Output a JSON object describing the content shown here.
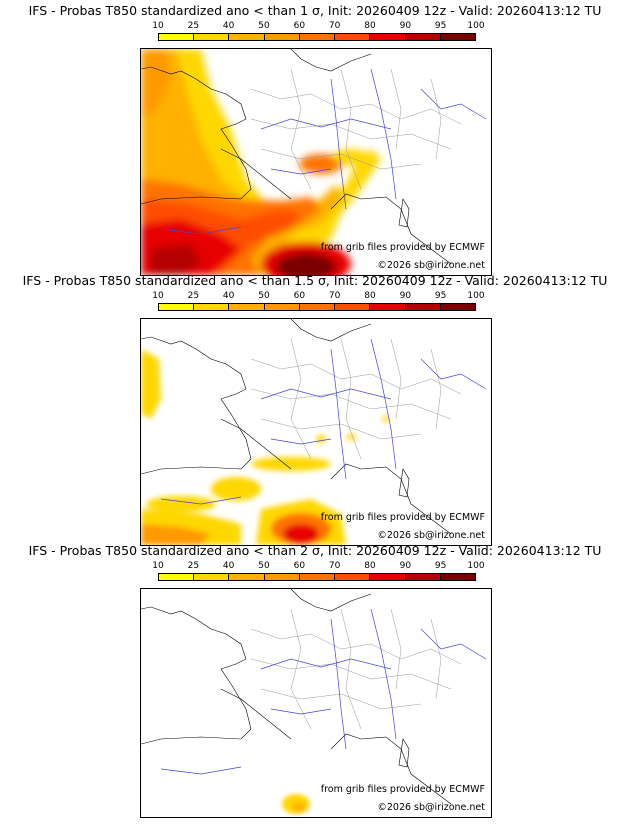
{
  "legend": {
    "ticks": [
      "10",
      "25",
      "40",
      "50",
      "60",
      "70",
      "80",
      "90",
      "95",
      "100"
    ],
    "colors": [
      "#ffff00",
      "#ffd700",
      "#ffb000",
      "#ff9900",
      "#ff7300",
      "#ff4d00",
      "#e60000",
      "#b40000",
      "#7a0000"
    ]
  },
  "panels": [
    {
      "title": "IFS - Probas T850  standardized ano < than 1 σ, Init: 20260409 12z - Valid: 20260413:12 TU",
      "credit": "from grib files provided by ECMWF",
      "copyright": "©2026 sb@irizone.net"
    },
    {
      "title": "IFS - Probas T850  standardized ano < than 1.5 σ, Init: 20260409 12z - Valid: 20260413:12 TU",
      "credit": "from grib files provided by ECMWF",
      "copyright": "©2026 sb@irizone.net"
    },
    {
      "title": "IFS - Probas T850  standardized ano < than 2 σ, Init: 20260409 12z - Valid: 20260413:12 TU",
      "credit": "from grib files provided by ECMWF",
      "copyright": "©2026 sb@irizone.net"
    }
  ]
}
